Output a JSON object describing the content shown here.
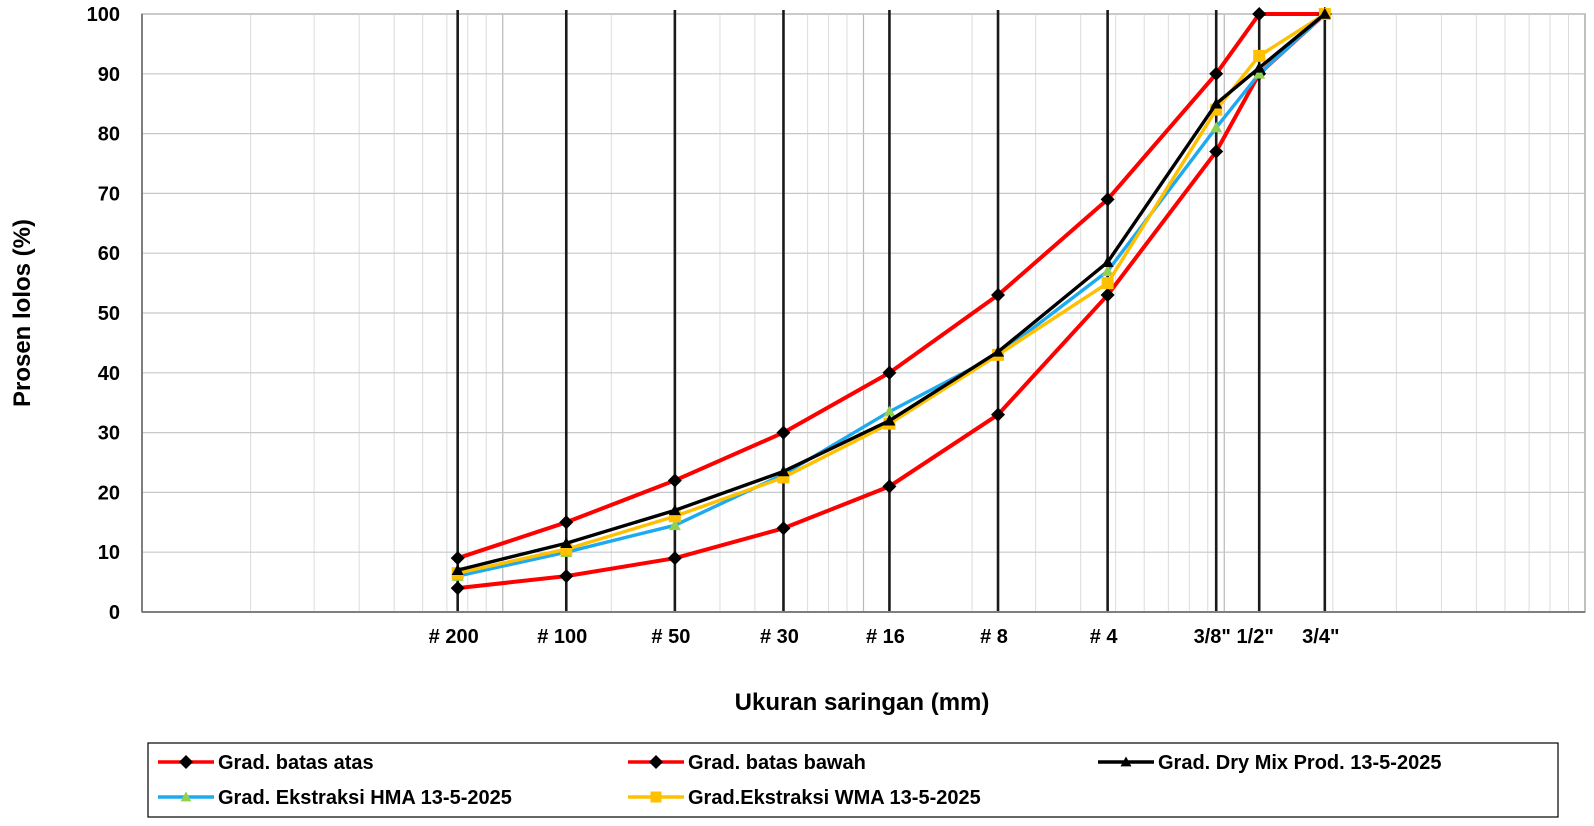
{
  "chart_data": {
    "type": "line",
    "xscale": "log",
    "xlabel": "Ukuran saringan (mm)",
    "ylabel": "Prosen lolos (%)",
    "ylim": [
      0,
      100
    ],
    "yticks": [
      0,
      10,
      20,
      30,
      40,
      50,
      60,
      70,
      80,
      90,
      100
    ],
    "grid": true,
    "sieves": [
      {
        "label": "# 200",
        "size_mm": 0.075
      },
      {
        "label": "# 100",
        "size_mm": 0.15
      },
      {
        "label": "# 50",
        "size_mm": 0.3
      },
      {
        "label": "# 30",
        "size_mm": 0.6
      },
      {
        "label": "# 16",
        "size_mm": 1.18
      },
      {
        "label": "# 8",
        "size_mm": 2.36
      },
      {
        "label": "# 4",
        "size_mm": 4.75
      },
      {
        "label": "3/8\"",
        "size_mm": 9.5
      },
      {
        "label": "1/2\"",
        "size_mm": 12.5
      },
      {
        "label": "3/4\"",
        "size_mm": 19
      }
    ],
    "series": [
      {
        "name": "Grad. batas atas",
        "color": "#ff0000",
        "marker": "diamond",
        "marker_color": "#000000",
        "values": [
          9,
          15,
          22,
          30,
          40,
          53,
          69,
          90,
          100,
          100
        ]
      },
      {
        "name": "Grad. batas bawah",
        "color": "#ff0000",
        "marker": "diamond",
        "marker_color": "#000000",
        "values": [
          4,
          6,
          9,
          14,
          21,
          33,
          53,
          77,
          90,
          100
        ]
      },
      {
        "name": "Grad. Dry Mix Prod. 13-5-2025",
        "color": "#000000",
        "marker": "triangle",
        "marker_color": "#000000",
        "values": [
          7,
          11.5,
          17,
          23.5,
          32,
          43.5,
          58.5,
          85,
          91,
          100
        ]
      },
      {
        "name": "Grad. Ekstraksi HMA 13-5-2025",
        "color": "#1eaaf1",
        "marker": "triangle",
        "marker_color": "#92d050",
        "values": [
          6,
          10,
          14.5,
          23,
          33.5,
          43,
          57,
          81,
          90,
          100
        ]
      },
      {
        "name": "Grad.Ekstraksi WMA 13-5-2025",
        "color": "#ffc000",
        "marker": "square",
        "marker_color": "#ffc000",
        "values": [
          6.5,
          10.5,
          16,
          22.5,
          31.5,
          43,
          55,
          84,
          93,
          100
        ]
      }
    ],
    "legend": "bottom"
  }
}
